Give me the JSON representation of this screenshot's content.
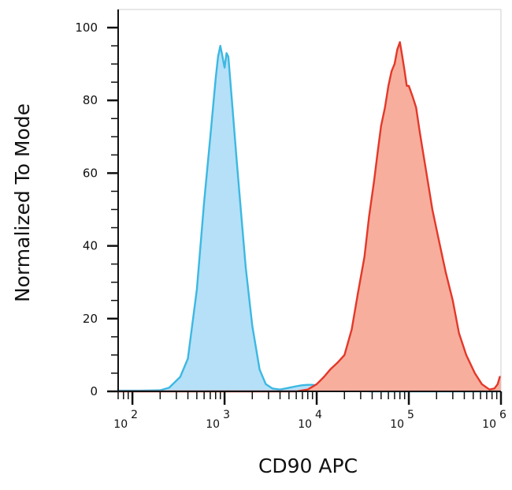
{
  "chart_data": {
    "type": "area",
    "xlabel": "CD90 APC",
    "ylabel": "Normalized To Mode",
    "xscale": "log",
    "xlim": [
      70,
      1000000
    ],
    "ylim": [
      0,
      100
    ],
    "yticks": [
      "0",
      "20",
      "40",
      "60",
      "80",
      "100"
    ],
    "yticks_values": [
      0,
      20,
      40,
      60,
      80,
      100
    ],
    "xticks": [
      {
        "value": 100,
        "base": "10",
        "exp": "2"
      },
      {
        "value": 1000,
        "base": "10",
        "exp": "3"
      },
      {
        "value": 10000,
        "base": "10",
        "exp": "4"
      },
      {
        "value": 100000,
        "base": "10",
        "exp": "5"
      },
      {
        "value": 1000000,
        "base": "10",
        "exp": "6"
      }
    ],
    "grid": false,
    "series": [
      {
        "color_fill": "#b5e0f7",
        "color_line": "#3cb8e2",
        "points": [
          [
            70,
            0.2
          ],
          [
            120,
            0.2
          ],
          [
            200,
            0.3
          ],
          [
            250,
            1
          ],
          [
            330,
            4
          ],
          [
            400,
            9
          ],
          [
            500,
            28
          ],
          [
            600,
            52
          ],
          [
            700,
            70
          ],
          [
            800,
            86
          ],
          [
            850,
            92
          ],
          [
            900,
            95
          ],
          [
            950,
            92
          ],
          [
            1000,
            89
          ],
          [
            1050,
            93
          ],
          [
            1100,
            92
          ],
          [
            1200,
            80
          ],
          [
            1350,
            64
          ],
          [
            1500,
            50
          ],
          [
            1700,
            34
          ],
          [
            2000,
            18
          ],
          [
            2400,
            6
          ],
          [
            2800,
            2
          ],
          [
            3300,
            0.8
          ],
          [
            4000,
            0.5
          ],
          [
            5000,
            1
          ],
          [
            6000,
            1.4
          ],
          [
            7000,
            1.7
          ],
          [
            8000,
            1.8
          ],
          [
            9000,
            1.8
          ],
          [
            10000,
            1.6
          ],
          [
            11000,
            1.7
          ],
          [
            12000,
            1.9
          ],
          [
            13000,
            1.4
          ],
          [
            14000,
            1.1
          ],
          [
            15000,
            0.8
          ],
          [
            18000,
            0.4
          ],
          [
            22000,
            0.2
          ],
          [
            40000,
            0
          ],
          [
            1000000,
            0
          ]
        ]
      },
      {
        "color_fill": "#f8ae9d",
        "color_line": "#e3382a",
        "points": [
          [
            70,
            0
          ],
          [
            6000,
            0
          ],
          [
            8000,
            0.5
          ],
          [
            10000,
            2
          ],
          [
            12000,
            4
          ],
          [
            14000,
            6
          ],
          [
            17000,
            8
          ],
          [
            20000,
            10
          ],
          [
            24000,
            17
          ],
          [
            28000,
            27
          ],
          [
            33000,
            37
          ],
          [
            37000,
            48
          ],
          [
            42000,
            58
          ],
          [
            46000,
            66
          ],
          [
            50000,
            73
          ],
          [
            55000,
            78
          ],
          [
            60000,
            84
          ],
          [
            65000,
            88
          ],
          [
            70000,
            90
          ],
          [
            75000,
            94
          ],
          [
            80000,
            96
          ],
          [
            85000,
            92
          ],
          [
            90000,
            88
          ],
          [
            95000,
            84
          ],
          [
            100000,
            84
          ],
          [
            110000,
            81
          ],
          [
            120000,
            78
          ],
          [
            130000,
            72
          ],
          [
            140000,
            67
          ],
          [
            160000,
            58
          ],
          [
            180000,
            50
          ],
          [
            210000,
            42
          ],
          [
            250000,
            33
          ],
          [
            300000,
            25
          ],
          [
            350000,
            16
          ],
          [
            420000,
            10
          ],
          [
            520000,
            5
          ],
          [
            620000,
            2
          ],
          [
            750000,
            0.5
          ],
          [
            850000,
            0.8
          ],
          [
            920000,
            2
          ],
          [
            970000,
            4
          ],
          [
            1000000,
            4
          ]
        ]
      }
    ]
  }
}
